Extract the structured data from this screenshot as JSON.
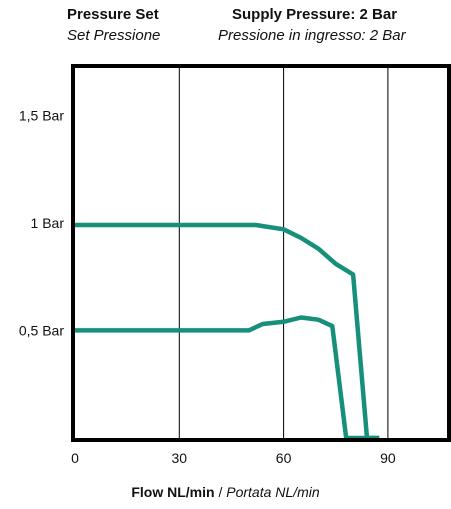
{
  "header": {
    "left_title": "Pressure Set",
    "left_subtitle": "Set Pressione",
    "right_title": "Supply Pressure: 2 Bar",
    "right_subtitle": "Pressione in ingresso: 2 Bar"
  },
  "xaxis": {
    "label_bold": "Flow NL/min",
    "label_sep": " / ",
    "label_italic": "Portata NL/min"
  },
  "colors": {
    "series": "#16907b",
    "frame": "#000000",
    "grid": "#000000"
  },
  "chart_data": {
    "type": "line",
    "title": "",
    "xlabel": "Flow NL/min / Portata NL/min",
    "ylabel": "",
    "xlim": [
      0,
      107
    ],
    "ylim": [
      0,
      1.72
    ],
    "x_ticks": [
      {
        "value": 0,
        "label": "0"
      },
      {
        "value": 30,
        "label": "30"
      },
      {
        "value": 60,
        "label": "60"
      },
      {
        "value": 90,
        "label": "90"
      }
    ],
    "y_ticks": [
      {
        "value": 0.5,
        "label": "0,5 Bar"
      },
      {
        "value": 1.0,
        "label": "1 Bar"
      },
      {
        "value": 1.5,
        "label": "1,5 Bar"
      }
    ],
    "grid": {
      "x": true,
      "y": false
    },
    "series": [
      {
        "x": [
          0,
          52,
          60,
          65,
          70,
          75,
          80,
          84,
          87.5
        ],
        "y": [
          0.99,
          0.99,
          0.97,
          0.93,
          0.88,
          0.81,
          0.76,
          0.0,
          0.0
        ]
      },
      {
        "x": [
          0,
          50,
          54,
          60,
          65,
          70,
          74,
          78,
          87.5
        ],
        "y": [
          0.5,
          0.5,
          0.53,
          0.54,
          0.56,
          0.55,
          0.52,
          0.0,
          0.0
        ]
      }
    ]
  }
}
